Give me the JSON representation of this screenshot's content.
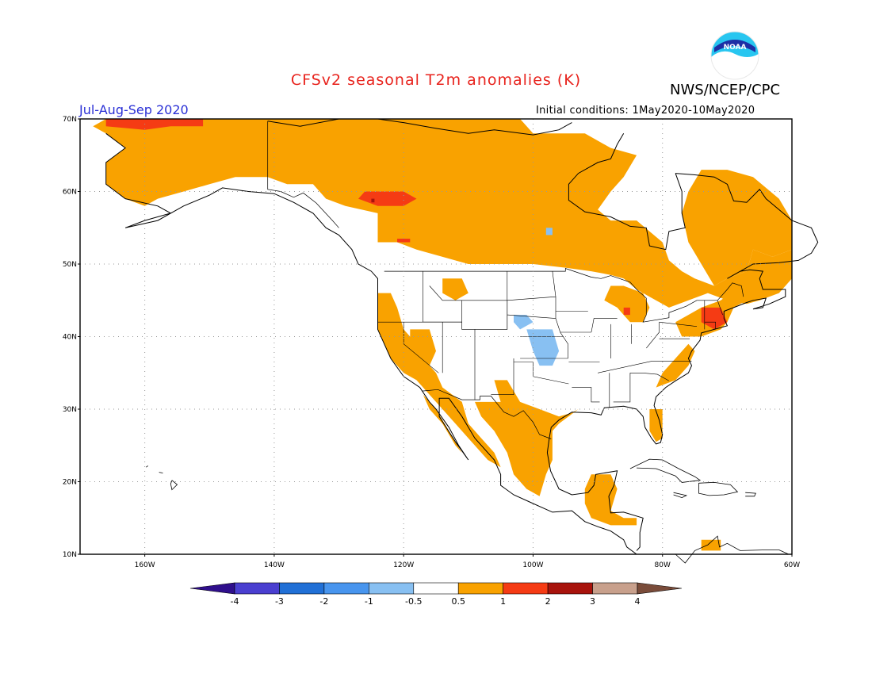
{
  "header": {
    "title": "CFSv2 seasonal T2m anomalies (K)",
    "agency": "NWS/NCEP/CPC",
    "period": "Jul-Aug-Sep 2020",
    "initial_conditions": "Initial conditions: 1May2020-10May2020",
    "logo_text": "NOAA"
  },
  "map": {
    "lat_labels": [
      "70N",
      "60N",
      "50N",
      "40N",
      "30N",
      "20N",
      "10N"
    ],
    "lon_labels": [
      "160W",
      "140W",
      "120W",
      "100W",
      "80W",
      "60W"
    ],
    "lat_range": [
      10,
      70
    ],
    "lon_range": [
      -170,
      -60
    ],
    "grid": "dotted"
  },
  "colorbar": {
    "labels": [
      "-4",
      "-3",
      "-2",
      "-1",
      "-0.5",
      "0.5",
      "1",
      "2",
      "3",
      "4"
    ],
    "colors": [
      "#2f0f8c",
      "#4a3fd0",
      "#2170d6",
      "#4895ee",
      "#88c0f2",
      "#ffffff",
      "#f9a200",
      "#f53b14",
      "#a8130c",
      "#c8a08c",
      "#7a4c3a"
    ]
  },
  "anomaly_colors": {
    "warm_0_5_1": "#f9a200",
    "warm_1_2": "#f53b14",
    "warm_2_3": "#a8130c",
    "cool_-1_-0_5": "#88c0f2"
  }
}
